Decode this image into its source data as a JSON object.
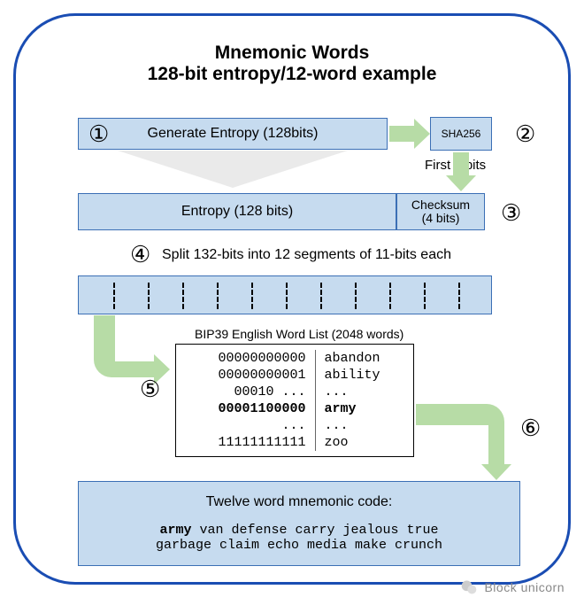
{
  "title_line1": "Mnemonic Words",
  "title_line2": "128-bit entropy/12-word example",
  "step1_label": "Generate Entropy (128bits)",
  "sha_label": "SHA256",
  "first4_label": "First 4 bits",
  "entropy_label": "Entropy (128 bits)",
  "checksum_label1": "Checksum",
  "checksum_label2": "(4 bits)",
  "step4_text": "Split 132-bits into 12 segments of 11-bits each",
  "wordlist_caption": "BIP39 English Word List (2048 words)",
  "wordlist_rows": [
    {
      "bits": "00000000000",
      "word": "abandon",
      "bold": false
    },
    {
      "bits": "00000000001",
      "word": "ability",
      "bold": false
    },
    {
      "bits": "00010 ...",
      "word": "...",
      "bold": false
    },
    {
      "bits": "00001100000",
      "word": "army",
      "bold": true
    },
    {
      "bits": "...",
      "word": "...",
      "bold": false
    },
    {
      "bits": "11111111111",
      "word": "zoo",
      "bold": false
    }
  ],
  "result_title": "Twelve word mnemonic code:",
  "result_line1": "army van defense carry jealous true",
  "result_line2": "garbage claim echo media make crunch",
  "nums": {
    "n1": "①",
    "n2": "②",
    "n3": "③",
    "n4": "④",
    "n5": "⑤",
    "n6": "⑥"
  },
  "watermark": "Block unicorn",
  "colors": {
    "frame": "#1a4db3",
    "box_fill": "#c6dbef",
    "box_border": "#3b6fb5",
    "arrow": "#b7dca6",
    "trapezoid": "#eaeaea"
  },
  "segments": 12
}
